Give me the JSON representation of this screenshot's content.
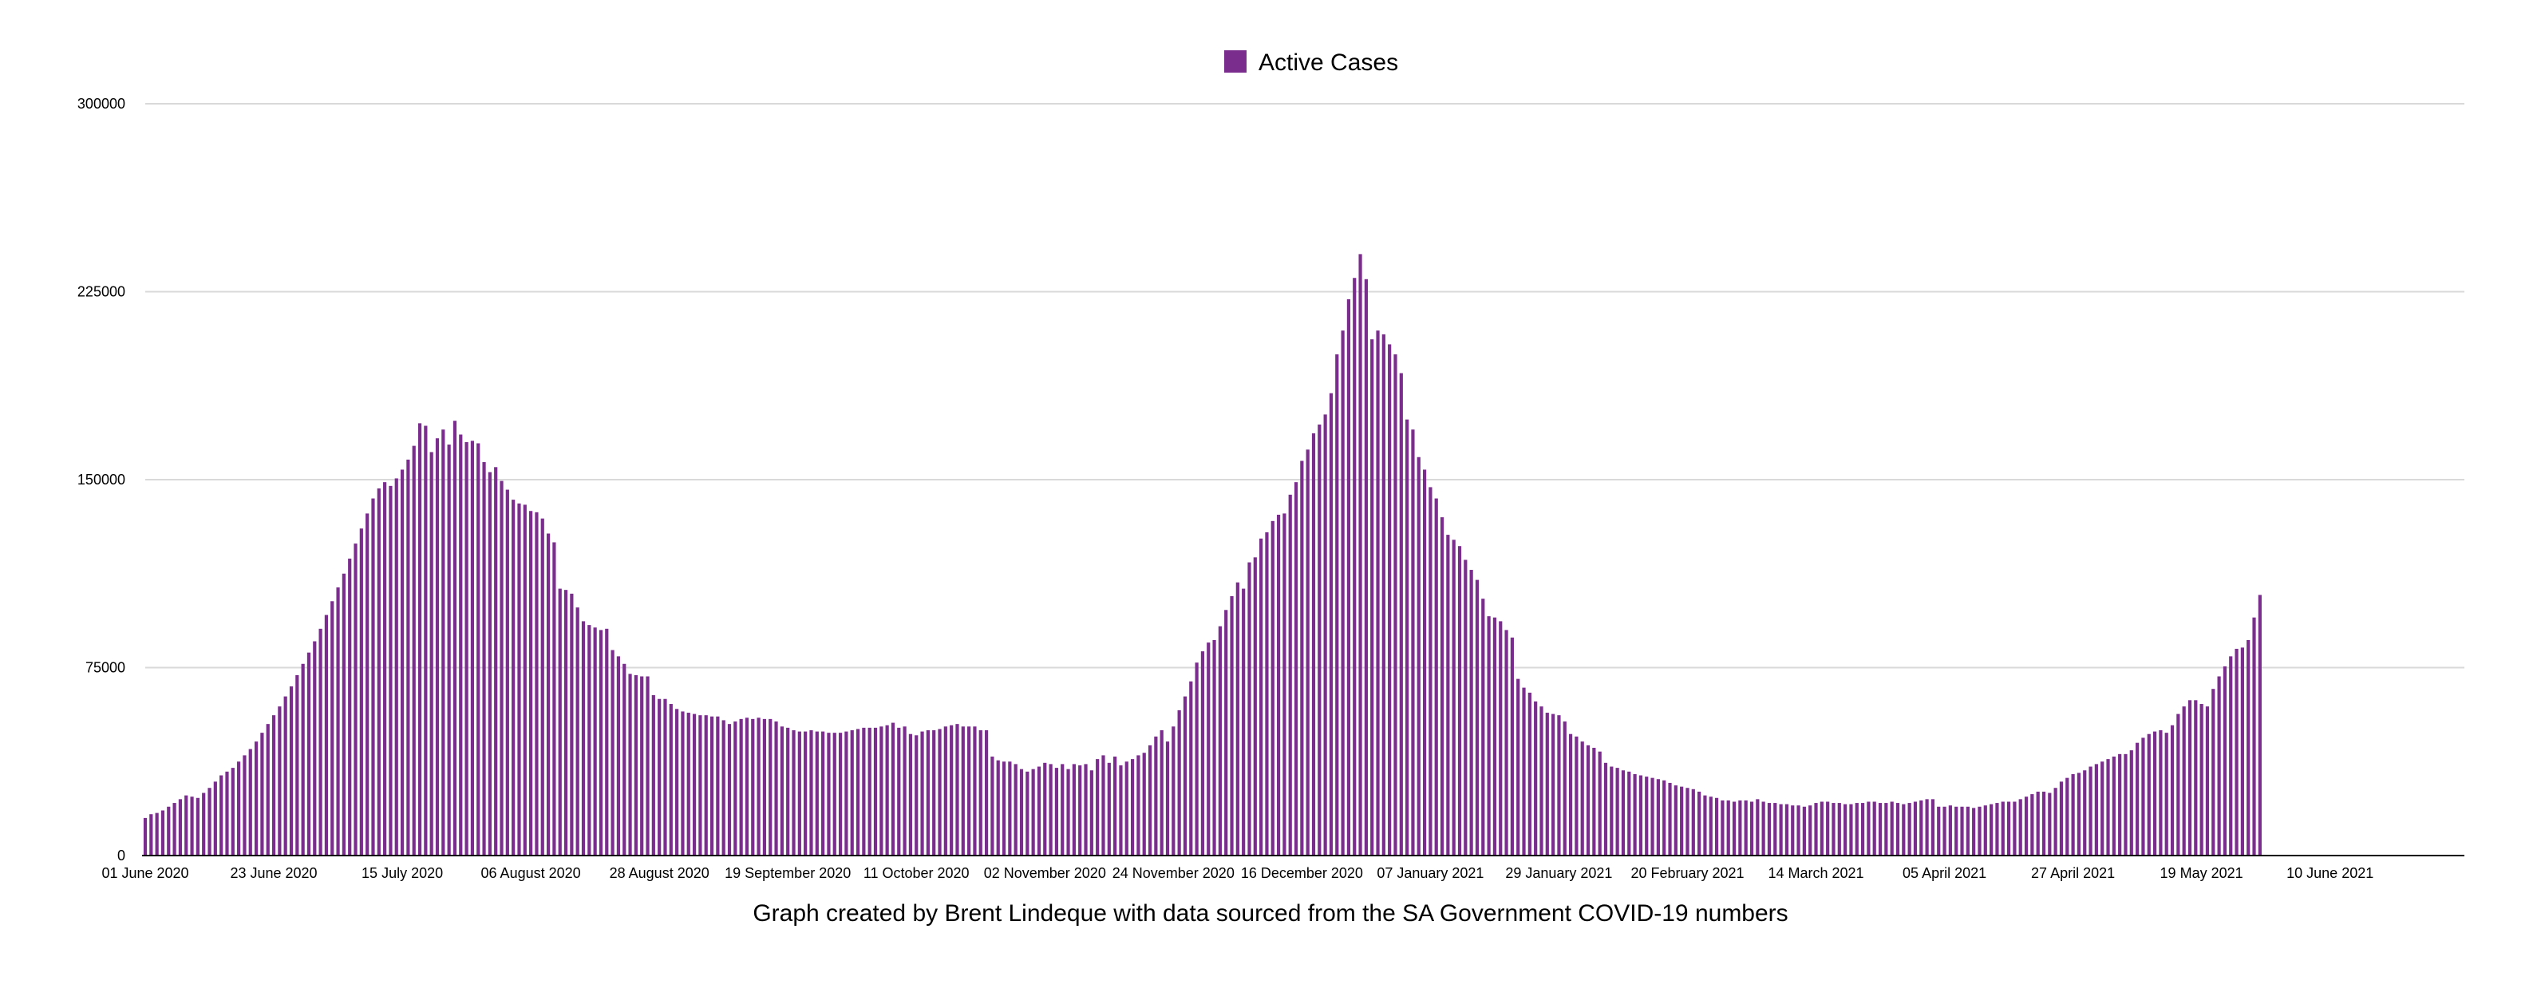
{
  "legend": {
    "label": "Active Cases",
    "color": "#7B2D8E"
  },
  "caption": "Graph created by Brent Lindeque with data sourced from the SA Government COVID-19 numbers",
  "chart_data": {
    "type": "bar",
    "title": "",
    "xlabel": "",
    "ylabel": "",
    "ylim": [
      0,
      300000
    ],
    "yticks": [
      "0",
      "75000",
      "150000",
      "225000",
      "300000"
    ],
    "grid": true,
    "legend_position": "top-center",
    "x_start": "01 June 2020",
    "x_step_days": 1,
    "x_tick_labels": [
      "01 June 2020",
      "23 June 2020",
      "15 July 2020",
      "06 August 2020",
      "28 August 2020",
      "19 September 2020",
      "11 October 2020",
      "02 November 2020",
      "24 November 2020",
      "16 December 2020",
      "07 January 2021",
      "29 January 2021",
      "20 February 2021",
      "14 March 2021",
      "05 April 2021",
      "27 April 2021",
      "19 May 2021",
      "10 June 2021"
    ],
    "series": [
      {
        "name": "Active Cases",
        "color": "#7B2D8E",
        "values": [
          15000,
          16500,
          17000,
          18000,
          19500,
          21000,
          22500,
          24000,
          23500,
          23000,
          25000,
          27000,
          29500,
          32000,
          33500,
          35000,
          37500,
          40000,
          42500,
          45500,
          49000,
          52500,
          56000,
          59500,
          63500,
          67500,
          72000,
          76500,
          81000,
          85500,
          90500,
          96000,
          101500,
          107000,
          112500,
          118500,
          124500,
          130500,
          136500,
          142500,
          146500,
          149000,
          147500,
          150500,
          154000,
          158000,
          163500,
          172500,
          171500,
          161000,
          166500,
          170000,
          164000,
          173500,
          168000,
          165000,
          165500,
          164500,
          157000,
          153000,
          155000,
          149500,
          146000,
          142000,
          140500,
          140000,
          137500,
          137000,
          134500,
          128500,
          125000,
          106500,
          106000,
          104500,
          99000,
          93500,
          92000,
          91000,
          90000,
          90500,
          82000,
          79500,
          76500,
          72500,
          72000,
          71500,
          71500,
          64000,
          62500,
          62500,
          60500,
          58500,
          57500,
          57000,
          56500,
          56000,
          56000,
          55500,
          55500,
          54000,
          52500,
          53500,
          54500,
          55000,
          54500,
          55000,
          54500,
          54500,
          53500,
          51500,
          51000,
          50000,
          49500,
          49500,
          50000,
          49500,
          49500,
          49000,
          49000,
          49000,
          49500,
          50000,
          50500,
          51000,
          51000,
          51000,
          51500,
          52000,
          53000,
          51000,
          51500,
          48500,
          48000,
          49500,
          50000,
          50000,
          50500,
          51500,
          52000,
          52500,
          51500,
          51500,
          51500,
          50000,
          50000,
          39500,
          38000,
          37500,
          37500,
          36500,
          34500,
          33500,
          34500,
          35500,
          37000,
          36500,
          35000,
          36500,
          34500,
          36500,
          36000,
          36500,
          34000,
          38500,
          40000,
          37000,
          39500,
          36000,
          37500,
          38500,
          40000,
          41000,
          44000,
          47500,
          50000,
          45500,
          51500,
          58000,
          63500,
          69500,
          77000,
          81500,
          85000,
          86000,
          91500,
          98000,
          103500,
          109000,
          106500,
          117000,
          119000,
          126500,
          129000,
          133500,
          136000,
          136500,
          144000,
          149000,
          157500,
          162000,
          168500,
          172000,
          176000,
          184500,
          200000,
          209500,
          222000,
          230500,
          240000,
          230000,
          206000,
          209500,
          208000,
          204000,
          200000,
          192500,
          174000,
          170000,
          159000,
          154000,
          147000,
          142500,
          135000,
          128000,
          126000,
          123500,
          118000,
          114000,
          110000,
          102500,
          95500,
          95000,
          93500,
          90000,
          87000,
          70500,
          67000,
          65000,
          61500,
          59500,
          57000,
          56500,
          56000,
          53500,
          48500,
          47500,
          45500,
          44000,
          43000,
          41500,
          37000,
          35500,
          35000,
          34000,
          33500,
          32500,
          32000,
          31500,
          31000,
          30500,
          30000,
          29000,
          28000,
          27500,
          27000,
          26500,
          25500,
          24000,
          23500,
          23000,
          22000,
          22000,
          21500,
          22000,
          22000,
          21500,
          22500,
          21500,
          21000,
          21000,
          20500,
          20500,
          20000,
          20000,
          19500,
          20000,
          21000,
          21500,
          21500,
          21000,
          21000,
          20500,
          20500,
          21000,
          21000,
          21500,
          21500,
          21000,
          21000,
          21500,
          21000,
          20500,
          21000,
          21500,
          22000,
          22500,
          22500,
          19500,
          19500,
          20000,
          19500,
          19500,
          19500,
          19000,
          19500,
          20000,
          20500,
          21000,
          21500,
          21500,
          21500,
          22500,
          23500,
          24500,
          25500,
          25500,
          25000,
          27000,
          29500,
          31000,
          32500,
          33000,
          34000,
          35500,
          36500,
          37500,
          38500,
          39500,
          40500,
          40500,
          42000,
          45000,
          47000,
          48500,
          49500,
          50000,
          49000,
          52000,
          56500,
          59500,
          62000,
          62000,
          60500,
          59500,
          66500,
          71500,
          75500,
          79500,
          82500,
          83000,
          86000,
          95000,
          104000
        ]
      }
    ]
  }
}
